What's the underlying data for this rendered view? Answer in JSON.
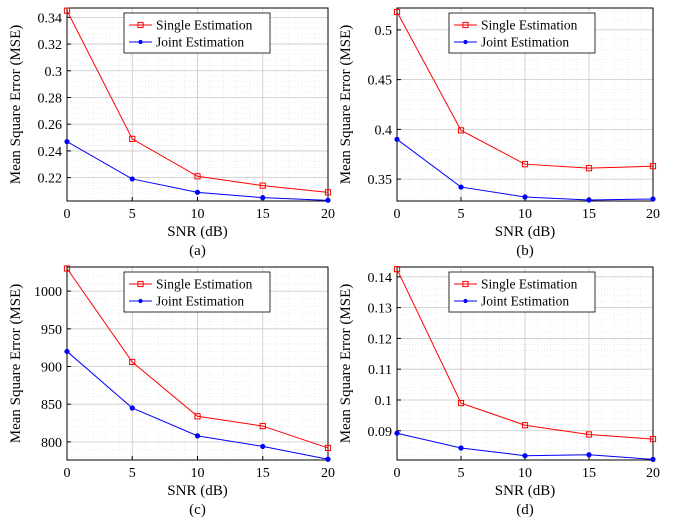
{
  "chart_data": [
    {
      "type": "line",
      "caption": "(a)",
      "xlabel": "SNR (dB)",
      "ylabel": "Mean Square Error (MSE)",
      "x": [
        0,
        5,
        10,
        15,
        20
      ],
      "xlim": [
        0,
        20
      ],
      "ylim": [
        0.2025,
        0.347
      ],
      "xticks": [
        0,
        5,
        10,
        15,
        20
      ],
      "yticks": [
        0.22,
        0.24,
        0.26,
        0.28,
        0.3,
        0.32,
        0.34
      ],
      "yticklabels": [
        "0.22",
        "0.24",
        "0.26",
        "0.28",
        "0.3",
        "0.32",
        "0.34"
      ],
      "grid": true,
      "legend": "top-right",
      "series": [
        {
          "name": "Single Estimation",
          "color": "#ff0000",
          "marker": "square",
          "values": [
            0.345,
            0.249,
            0.221,
            0.214,
            0.209
          ]
        },
        {
          "name": "Joint Estimation",
          "color": "#0000ff",
          "marker": "dot",
          "values": [
            0.247,
            0.219,
            0.209,
            0.205,
            0.203
          ]
        }
      ]
    },
    {
      "type": "line",
      "caption": "(b)",
      "xlabel": "SNR (dB)",
      "ylabel": "Mean Square Error (MSE)",
      "x": [
        0,
        5,
        10,
        15,
        20
      ],
      "xlim": [
        0,
        20
      ],
      "ylim": [
        0.328,
        0.522
      ],
      "xticks": [
        0,
        5,
        10,
        15,
        20
      ],
      "yticks": [
        0.35,
        0.4,
        0.45,
        0.5
      ],
      "yticklabels": [
        "0.35",
        "0.4",
        "0.45",
        "0.5"
      ],
      "grid": true,
      "legend": "top-right",
      "series": [
        {
          "name": "Single Estimation",
          "color": "#ff0000",
          "marker": "square",
          "values": [
            0.518,
            0.399,
            0.365,
            0.361,
            0.363
          ]
        },
        {
          "name": "Joint Estimation",
          "color": "#0000ff",
          "marker": "dot",
          "values": [
            0.39,
            0.342,
            0.332,
            0.329,
            0.33
          ]
        }
      ]
    },
    {
      "type": "line",
      "caption": "(c)",
      "xlabel": "SNR (dB)",
      "ylabel": "Mean Square Error (MSE)",
      "x": [
        0,
        5,
        10,
        15,
        20
      ],
      "xlim": [
        0,
        20
      ],
      "ylim": [
        776,
        1032
      ],
      "xticks": [
        0,
        5,
        10,
        15,
        20
      ],
      "yticks": [
        800,
        850,
        900,
        950,
        1000
      ],
      "yticklabels": [
        "800",
        "850",
        "900",
        "950",
        "1000"
      ],
      "grid": true,
      "legend": "top-right",
      "series": [
        {
          "name": "Single Estimation",
          "color": "#ff0000",
          "marker": "square",
          "values": [
            1030,
            906,
            834,
            821,
            792
          ]
        },
        {
          "name": "Joint Estimation",
          "color": "#0000ff",
          "marker": "dot",
          "values": [
            920,
            845,
            808,
            794,
            777
          ]
        }
      ]
    },
    {
      "type": "line",
      "caption": "(d)",
      "xlabel": "SNR (dB)",
      "ylabel": "Mean Square Error (MSE)",
      "x": [
        0,
        5,
        10,
        15,
        20
      ],
      "xlim": [
        0,
        20
      ],
      "ylim": [
        0.0805,
        0.1432
      ],
      "xticks": [
        0,
        5,
        10,
        15,
        20
      ],
      "yticks": [
        0.09,
        0.1,
        0.11,
        0.12,
        0.13,
        0.14
      ],
      "yticklabels": [
        "0.09",
        "0.1",
        "0.11",
        "0.12",
        "0.13",
        "0.14"
      ],
      "grid": true,
      "legend": "top-right",
      "series": [
        {
          "name": "Single Estimation",
          "color": "#ff0000",
          "marker": "square",
          "values": [
            0.1425,
            0.099,
            0.0918,
            0.0888,
            0.0873
          ]
        },
        {
          "name": "Joint Estimation",
          "color": "#0000ff",
          "marker": "dot",
          "values": [
            0.0892,
            0.0844,
            0.0819,
            0.0822,
            0.0807
          ]
        }
      ]
    }
  ]
}
